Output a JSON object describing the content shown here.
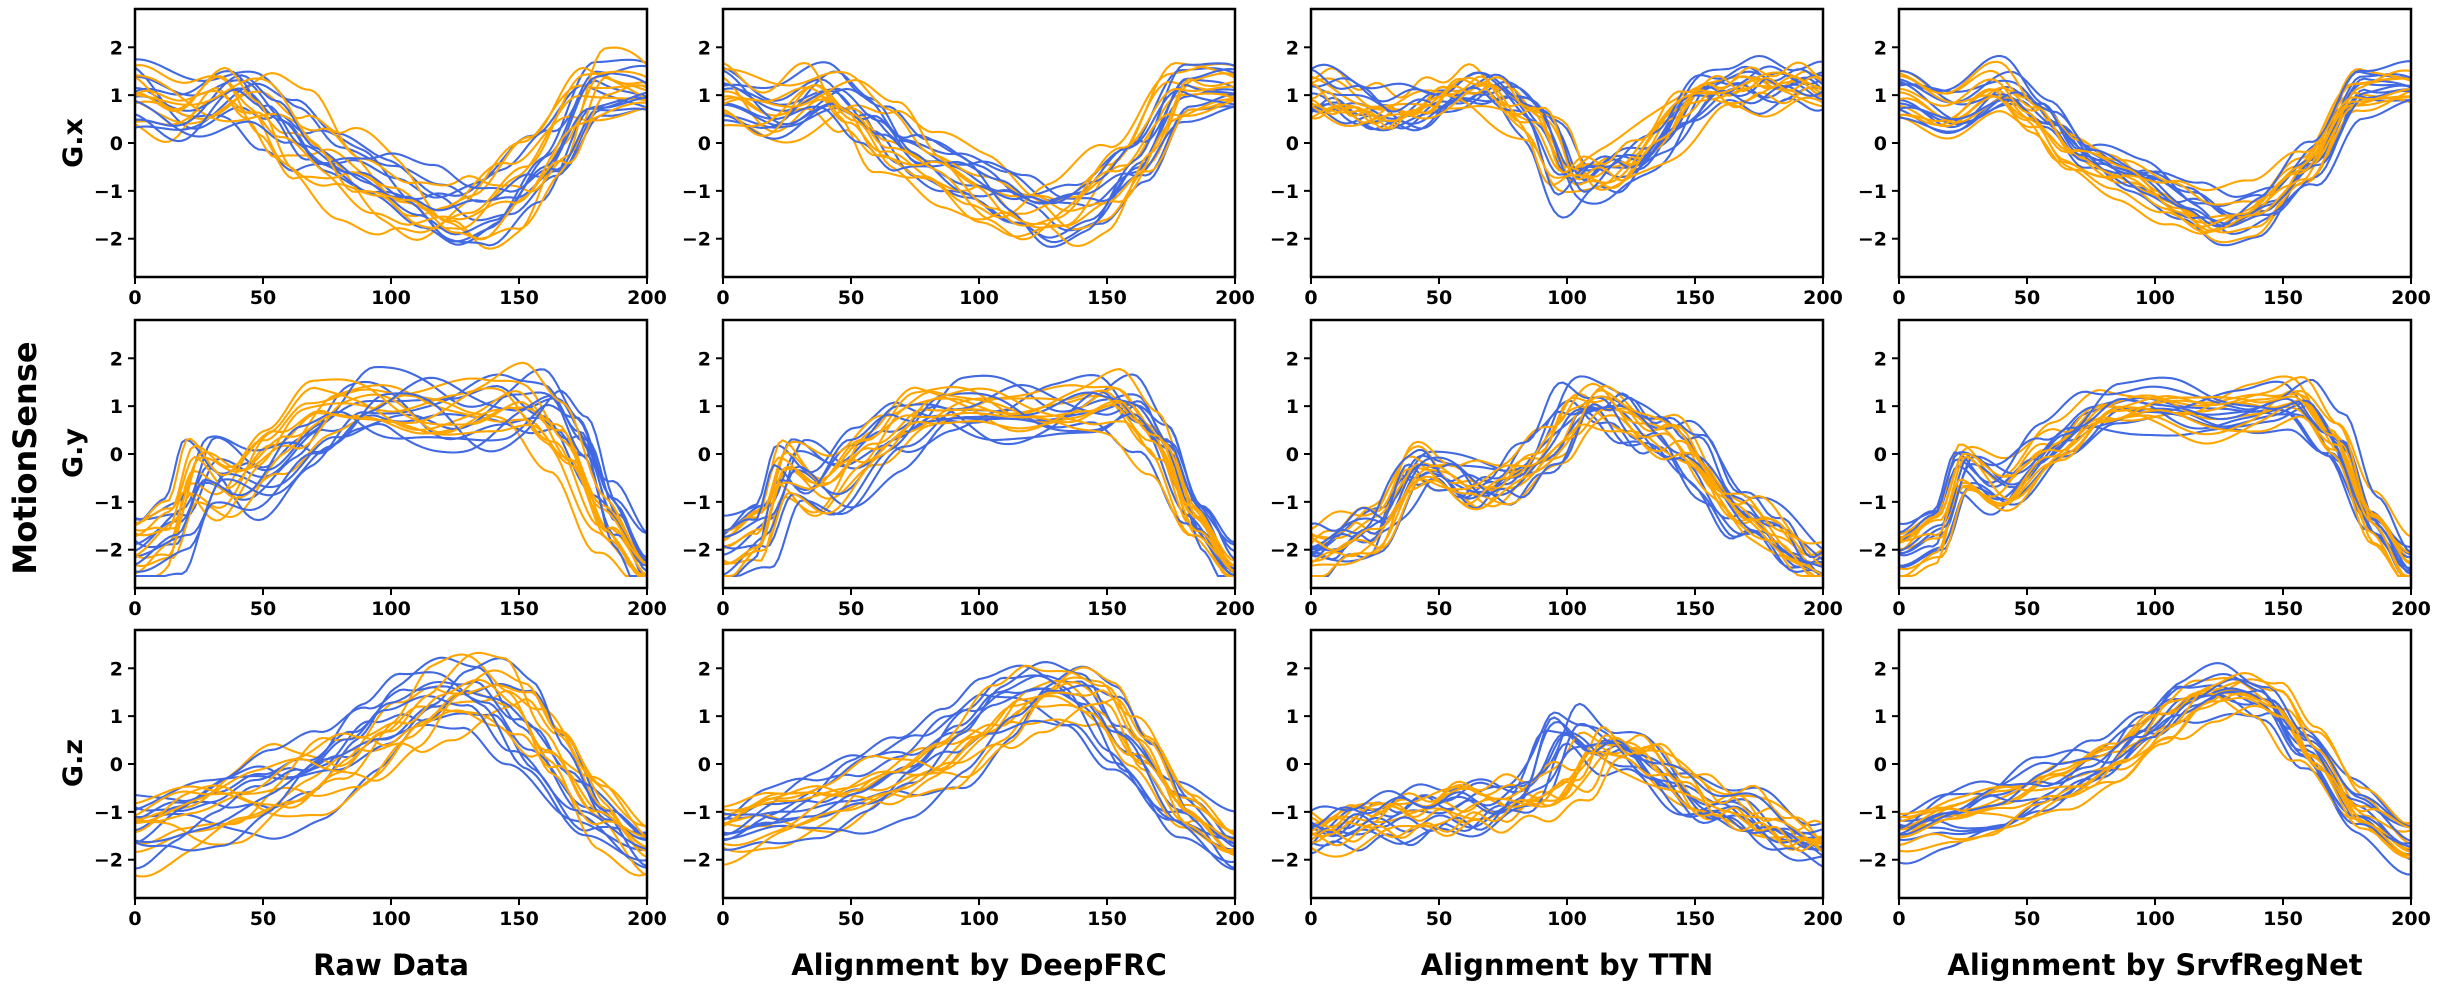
{
  "figure": {
    "dataset_label": "MotionSense",
    "row_labels": [
      "G.x",
      "G.y",
      "G.z"
    ],
    "column_titles": [
      "Raw Data",
      "Alignment by DeepFRC",
      "Alignment by TTN",
      "Alignment by SrvfRegNet"
    ],
    "colors": {
      "series_a": "#4169e1",
      "series_b": "#ffa500",
      "axes": "#000000"
    }
  },
  "chart_data": {
    "type": "line",
    "layout": "3x4 grid of line plots",
    "x_range": [
      0,
      200
    ],
    "y_range": [
      -2.8,
      2.8
    ],
    "x_ticks": [
      0,
      50,
      100,
      150,
      200
    ],
    "y_ticks": [
      -2,
      -1,
      0,
      1,
      2
    ],
    "series_groups": [
      {
        "name": "blue curves",
        "color": "#4169e1",
        "count": 10
      },
      {
        "name": "orange curves",
        "color": "#ffa500",
        "count": 10
      }
    ],
    "panels": [
      {
        "row": "G.x",
        "column": "Raw Data",
        "method": "raw",
        "base_curve": "gx"
      },
      {
        "row": "G.x",
        "column": "Alignment by DeepFRC",
        "method": "deepfrc",
        "base_curve": "gx"
      },
      {
        "row": "G.x",
        "column": "Alignment by TTN",
        "method": "ttn",
        "base_curve": "gx"
      },
      {
        "row": "G.x",
        "column": "Alignment by SrvfRegNet",
        "method": "srvf",
        "base_curve": "gx"
      },
      {
        "row": "G.y",
        "column": "Raw Data",
        "method": "raw",
        "base_curve": "gy"
      },
      {
        "row": "G.y",
        "column": "Alignment by DeepFRC",
        "method": "deepfrc",
        "base_curve": "gy"
      },
      {
        "row": "G.y",
        "column": "Alignment by TTN",
        "method": "ttn",
        "base_curve": "gy"
      },
      {
        "row": "G.y",
        "column": "Alignment by SrvfRegNet",
        "method": "srvf",
        "base_curve": "gy"
      },
      {
        "row": "G.z",
        "column": "Raw Data",
        "method": "raw",
        "base_curve": "gz"
      },
      {
        "row": "G.z",
        "column": "Alignment by DeepFRC",
        "method": "deepfrc",
        "base_curve": "gz"
      },
      {
        "row": "G.z",
        "column": "Alignment by TTN",
        "method": "ttn",
        "base_curve": "gz"
      },
      {
        "row": "G.z",
        "column": "Alignment by SrvfRegNet",
        "method": "srvf",
        "base_curve": "gz"
      }
    ],
    "base_curves": {
      "gx": {
        "x": [
          0,
          20,
          40,
          55,
          70,
          90,
          110,
          125,
          140,
          160,
          180,
          200
        ],
        "y": [
          1.0,
          0.6,
          1.1,
          0.5,
          -0.3,
          -0.7,
          -1.2,
          -1.6,
          -1.4,
          -0.5,
          1.1,
          1.3
        ]
      },
      "gy": {
        "x": [
          0,
          15,
          25,
          40,
          60,
          80,
          100,
          120,
          140,
          155,
          170,
          185,
          200
        ],
        "y": [
          -2.0,
          -1.6,
          -0.3,
          -0.8,
          0.1,
          0.9,
          1.0,
          0.8,
          0.9,
          1.1,
          0.3,
          -1.3,
          -2.2
        ]
      },
      "gz": {
        "x": [
          0,
          20,
          40,
          60,
          80,
          100,
          115,
          130,
          145,
          160,
          180,
          200
        ],
        "y": [
          -1.4,
          -1.1,
          -0.9,
          -0.5,
          0.0,
          0.8,
          1.4,
          1.6,
          1.3,
          0.3,
          -0.9,
          -1.5
        ]
      }
    }
  }
}
